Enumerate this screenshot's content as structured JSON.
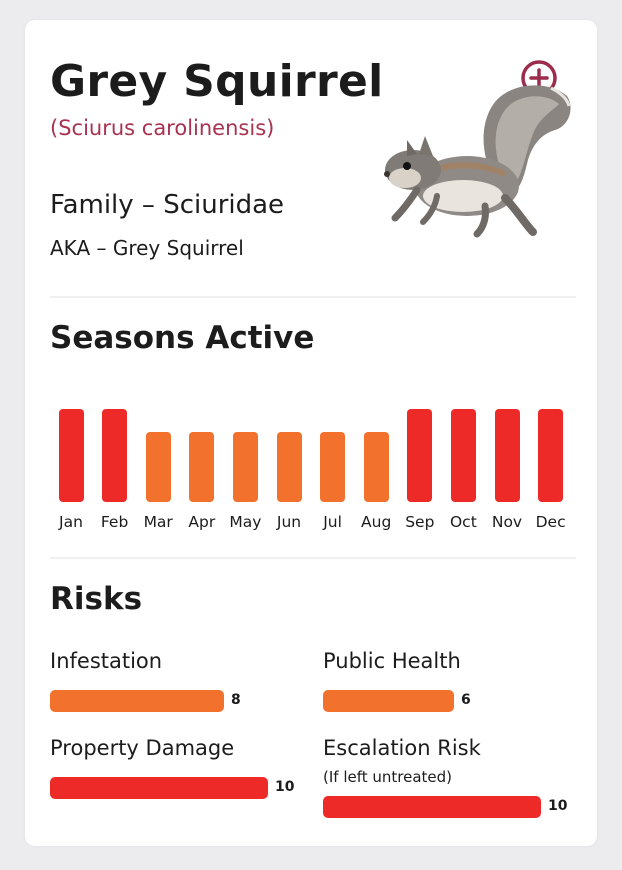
{
  "header": {
    "title": "Grey Squirrel",
    "latin_name": "(Sciurus carolinensis)",
    "family": "Family – Sciuridae",
    "aka": "AKA – Grey Squirrel"
  },
  "icons": {
    "zoom": "zoom-in-icon",
    "image": "grey-squirrel-photo"
  },
  "seasons": {
    "title": "Seasons Active",
    "legend_colors": {
      "high": "#ee2a28",
      "medium": "#f2712c"
    },
    "months": [
      {
        "label": "Jan",
        "level": "high"
      },
      {
        "label": "Feb",
        "level": "high"
      },
      {
        "label": "Mar",
        "level": "medium"
      },
      {
        "label": "Apr",
        "level": "medium"
      },
      {
        "label": "May",
        "level": "medium"
      },
      {
        "label": "Jun",
        "level": "medium"
      },
      {
        "label": "Jul",
        "level": "medium"
      },
      {
        "label": "Aug",
        "level": "medium"
      },
      {
        "label": "Sep",
        "level": "high"
      },
      {
        "label": "Oct",
        "level": "high"
      },
      {
        "label": "Nov",
        "level": "high"
      },
      {
        "label": "Dec",
        "level": "high"
      }
    ]
  },
  "risks": {
    "title": "Risks",
    "max": 10,
    "items": [
      {
        "label": "Infestation",
        "value": "8",
        "color": "#f2712c"
      },
      {
        "label": "Public Health",
        "value": "6",
        "color": "#f2712c"
      },
      {
        "label": "Property Damage",
        "value": "10",
        "color": "#ee2a28"
      },
      {
        "label": "Escalation Risk",
        "sublabel": "(If left untreated)",
        "value": "10",
        "color": "#ee2a28"
      }
    ]
  }
}
